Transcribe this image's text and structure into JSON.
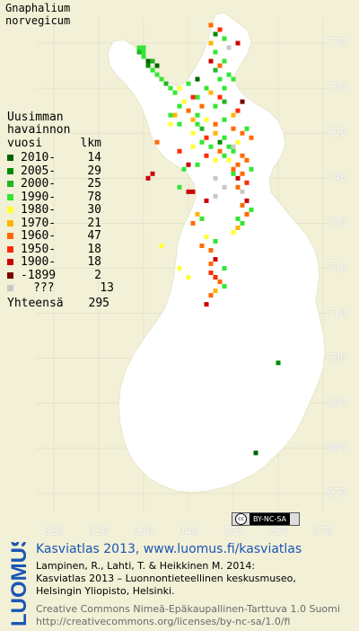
{
  "title": {
    "line1": "Gnaphalium",
    "line2": "norvegicum"
  },
  "legend": {
    "heading1": "Uusimman",
    "heading2": "havainnon",
    "col_period": "vuosi",
    "col_count": "lkm",
    "rows": [
      {
        "period": "2010-",
        "count": "14",
        "color": "#006400"
      },
      {
        "period": "2005-",
        "count": "29",
        "color": "#008c00"
      },
      {
        "period": "2000-",
        "count": "25",
        "color": "#22b422"
      },
      {
        "period": "1990-",
        "count": "78",
        "color": "#33e633"
      },
      {
        "period": "1980-",
        "count": "30",
        "color": "#ffff33"
      },
      {
        "period": "1970-",
        "count": "21",
        "color": "#ffb400"
      },
      {
        "period": "1960-",
        "count": "47",
        "color": "#ff6a00"
      },
      {
        "period": "1950-",
        "count": "18",
        "color": "#ff2a00"
      },
      {
        "period": "1900-",
        "count": "18",
        "color": "#cc0000"
      },
      {
        "period": "-1899",
        "count": "2",
        "color": "#7a0000"
      },
      {
        "period": "???",
        "count": "13",
        "color": "#c8c8c8"
      }
    ],
    "total_label": "Yhteensä",
    "total_count": "295"
  },
  "axes": {
    "y_ticks": [
      "770",
      "760",
      "750",
      "740",
      "730",
      "720",
      "710",
      "700",
      "690",
      "680",
      "670"
    ],
    "x_ticks": [
      "310",
      "320",
      "330",
      "340",
      "350",
      "360",
      "370"
    ]
  },
  "license_badge": "BY-NC-SA",
  "logo_text": "LUOMUS",
  "atlas_line": "Kasviatlas 2013, www.luomus.fi/kasviatlas",
  "reference": {
    "line1": "Lampinen, R., Lahti, T. & Heikkinen M. 2014:",
    "line2": "Kasviatlas 2013 – Luonnontieteellinen keskusmuseo,",
    "line3": "Helsingin Yliopisto, Helsinki."
  },
  "license": {
    "line1": "Creative Commons Nimeä-Epäkaupallinen-Tarttuva 1.0 Suomi",
    "line2": "http://creativecommons.org/licenses/by-nc-sa/1.0/fi"
  },
  "colors": {
    "background": "#f2f0d6",
    "land": "#ffffff",
    "grid": "#d8d6bf",
    "accent": "#1a56b5"
  },
  "observations": [
    {
      "n": 7690,
      "e": 3290,
      "c": 3
    },
    {
      "n": 7690,
      "e": 3300,
      "c": 3
    },
    {
      "n": 7680,
      "e": 3290,
      "c": 2
    },
    {
      "n": 7680,
      "e": 3300,
      "c": 3
    },
    {
      "n": 7670,
      "e": 3300,
      "c": 3
    },
    {
      "n": 7660,
      "e": 3310,
      "c": 0
    },
    {
      "n": 7650,
      "e": 3310,
      "c": 1
    },
    {
      "n": 7660,
      "e": 3320,
      "c": 2
    },
    {
      "n": 7640,
      "e": 3320,
      "c": 3
    },
    {
      "n": 7650,
      "e": 3330,
      "c": 0
    },
    {
      "n": 7630,
      "e": 3330,
      "c": 3
    },
    {
      "n": 7620,
      "e": 3340,
      "c": 3
    },
    {
      "n": 7610,
      "e": 3350,
      "c": 2
    },
    {
      "n": 7600,
      "e": 3360,
      "c": 3
    },
    {
      "n": 7590,
      "e": 3370,
      "c": 3
    },
    {
      "n": 7600,
      "e": 3380,
      "c": 4
    },
    {
      "n": 7610,
      "e": 3400,
      "c": 3
    },
    {
      "n": 7620,
      "e": 3420,
      "c": 0
    },
    {
      "n": 7580,
      "e": 3410,
      "c": 7
    },
    {
      "n": 7570,
      "e": 3390,
      "c": 4
    },
    {
      "n": 7550,
      "e": 3400,
      "c": 6
    },
    {
      "n": 7540,
      "e": 3420,
      "c": 3
    },
    {
      "n": 7530,
      "e": 3440,
      "c": 4
    },
    {
      "n": 7520,
      "e": 3460,
      "c": 6
    },
    {
      "n": 7530,
      "e": 3480,
      "c": 3
    },
    {
      "n": 7540,
      "e": 3500,
      "c": 5
    },
    {
      "n": 7510,
      "e": 3500,
      "c": 6
    },
    {
      "n": 7500,
      "e": 3520,
      "c": 6
    },
    {
      "n": 7510,
      "e": 3530,
      "c": 3
    },
    {
      "n": 7490,
      "e": 3540,
      "c": 6
    },
    {
      "n": 7480,
      "e": 3510,
      "c": 4
    },
    {
      "n": 7470,
      "e": 3490,
      "c": 3
    },
    {
      "n": 7460,
      "e": 3470,
      "c": 6
    },
    {
      "n": 7450,
      "e": 3440,
      "c": 7
    },
    {
      "n": 7440,
      "e": 3460,
      "c": 4
    },
    {
      "n": 7560,
      "e": 3460,
      "c": 3
    },
    {
      "n": 7570,
      "e": 3480,
      "c": 2
    },
    {
      "n": 7580,
      "e": 3470,
      "c": 7
    },
    {
      "n": 7590,
      "e": 3450,
      "c": 5
    },
    {
      "n": 7600,
      "e": 3440,
      "c": 3
    },
    {
      "n": 7620,
      "e": 3470,
      "c": 3
    },
    {
      "n": 7640,
      "e": 3460,
      "c": 2
    },
    {
      "n": 7660,
      "e": 3450,
      "c": 8
    },
    {
      "n": 7680,
      "e": 3460,
      "c": 3
    },
    {
      "n": 7700,
      "e": 3450,
      "c": 5
    },
    {
      "n": 7720,
      "e": 3460,
      "c": 1
    },
    {
      "n": 7710,
      "e": 3480,
      "c": 3
    },
    {
      "n": 7730,
      "e": 3470,
      "c": 7
    },
    {
      "n": 7740,
      "e": 3450,
      "c": 6
    },
    {
      "n": 7700,
      "e": 3510,
      "c": 8
    },
    {
      "n": 7690,
      "e": 3490,
      "c": 10
    },
    {
      "n": 7660,
      "e": 3480,
      "c": 3
    },
    {
      "n": 7650,
      "e": 3470,
      "c": 6
    },
    {
      "n": 7630,
      "e": 3490,
      "c": 3
    },
    {
      "n": 7600,
      "e": 3480,
      "c": 3
    },
    {
      "n": 7480,
      "e": 3430,
      "c": 3
    },
    {
      "n": 7470,
      "e": 3410,
      "c": 4
    },
    {
      "n": 7430,
      "e": 3400,
      "c": 8
    },
    {
      "n": 7420,
      "e": 3390,
      "c": 3
    },
    {
      "n": 7460,
      "e": 3380,
      "c": 7
    },
    {
      "n": 7500,
      "e": 3460,
      "c": 5
    },
    {
      "n": 7490,
      "e": 3480,
      "c": 3
    },
    {
      "n": 7470,
      "e": 3500,
      "c": 10
    },
    {
      "n": 7450,
      "e": 3520,
      "c": 6
    },
    {
      "n": 7440,
      "e": 3530,
      "c": 6
    },
    {
      "n": 7420,
      "e": 3540,
      "c": 3
    },
    {
      "n": 7410,
      "e": 3520,
      "c": 6
    },
    {
      "n": 7390,
      "e": 3530,
      "c": 7
    },
    {
      "n": 7380,
      "e": 3510,
      "c": 6
    },
    {
      "n": 7370,
      "e": 3520,
      "c": 10
    },
    {
      "n": 7350,
      "e": 3530,
      "c": 8
    },
    {
      "n": 7330,
      "e": 3540,
      "c": 3
    },
    {
      "n": 7320,
      "e": 3530,
      "c": 6
    },
    {
      "n": 7300,
      "e": 3520,
      "c": 3
    },
    {
      "n": 7290,
      "e": 3510,
      "c": 5
    },
    {
      "n": 7280,
      "e": 3500,
      "c": 4
    },
    {
      "n": 7260,
      "e": 3460,
      "c": 3
    },
    {
      "n": 7270,
      "e": 3440,
      "c": 4
    },
    {
      "n": 7250,
      "e": 3430,
      "c": 6
    },
    {
      "n": 7240,
      "e": 3450,
      "c": 6
    },
    {
      "n": 7220,
      "e": 3460,
      "c": 8
    },
    {
      "n": 7210,
      "e": 3450,
      "c": 6
    },
    {
      "n": 7190,
      "e": 3450,
      "c": 7
    },
    {
      "n": 7180,
      "e": 3460,
      "c": 7
    },
    {
      "n": 7170,
      "e": 3470,
      "c": 6
    },
    {
      "n": 7160,
      "e": 3480,
      "c": 3
    },
    {
      "n": 7150,
      "e": 3460,
      "c": 5
    },
    {
      "n": 7140,
      "e": 3450,
      "c": 6
    },
    {
      "n": 7120,
      "e": 3440,
      "c": 8
    },
    {
      "n": 7200,
      "e": 3480,
      "c": 3
    },
    {
      "n": 7350,
      "e": 3440,
      "c": 8
    },
    {
      "n": 7320,
      "e": 3420,
      "c": 5
    },
    {
      "n": 7300,
      "e": 3410,
      "c": 6
    },
    {
      "n": 7370,
      "e": 3400,
      "c": 8
    },
    {
      "n": 7370,
      "e": 3410,
      "c": 8
    },
    {
      "n": 7380,
      "e": 3380,
      "c": 3
    },
    {
      "n": 7250,
      "e": 3340,
      "c": 4
    },
    {
      "n": 7200,
      "e": 3380,
      "c": 4
    },
    {
      "n": 7180,
      "e": 3400,
      "c": 4
    },
    {
      "n": 7400,
      "e": 3310,
      "c": 8
    },
    {
      "n": 7410,
      "e": 3320,
      "c": 8
    },
    {
      "n": 7360,
      "e": 3460,
      "c": 10
    },
    {
      "n": 7380,
      "e": 3480,
      "c": 10
    },
    {
      "n": 7400,
      "e": 3460,
      "c": 10
    },
    {
      "n": 7310,
      "e": 3430,
      "c": 3
    },
    {
      "n": 7560,
      "e": 3430,
      "c": 6
    },
    {
      "n": 7580,
      "e": 3420,
      "c": 3
    },
    {
      "n": 7510,
      "e": 3430,
      "c": 2
    },
    {
      "n": 7520,
      "e": 3420,
      "c": 3
    },
    {
      "n": 7530,
      "e": 3410,
      "c": 5
    },
    {
      "n": 7500,
      "e": 3410,
      "c": 4
    },
    {
      "n": 7490,
      "e": 3440,
      "c": 7
    },
    {
      "n": 7480,
      "e": 3470,
      "c": 1
    },
    {
      "n": 7460,
      "e": 3500,
      "c": 3
    },
    {
      "n": 7440,
      "e": 3490,
      "c": 4
    },
    {
      "n": 7430,
      "e": 3510,
      "c": 6
    },
    {
      "n": 7410,
      "e": 3500,
      "c": 3
    },
    {
      "n": 7430,
      "e": 3420,
      "c": 3
    },
    {
      "n": 7520,
      "e": 3380,
      "c": 3
    },
    {
      "n": 7540,
      "e": 3370,
      "c": 5
    },
    {
      "n": 6990,
      "e": 3600,
      "c": 1
    },
    {
      "n": 6790,
      "e": 3550,
      "c": 0
    },
    {
      "n": 7480,
      "e": 3330,
      "c": 6
    },
    {
      "n": 7570,
      "e": 3520,
      "c": 9
    },
    {
      "n": 7620,
      "e": 3500,
      "c": 3
    },
    {
      "n": 7550,
      "e": 3510,
      "c": 7
    },
    {
      "n": 7520,
      "e": 3360,
      "c": 4
    },
    {
      "n": 7540,
      "e": 3360,
      "c": 3
    },
    {
      "n": 7560,
      "e": 3380,
      "c": 3
    },
    {
      "n": 7470,
      "e": 3450,
      "c": 3
    },
    {
      "n": 7450,
      "e": 3480,
      "c": 3
    },
    {
      "n": 7420,
      "e": 3500,
      "c": 6
    },
    {
      "n": 7400,
      "e": 3510,
      "c": 8
    },
    {
      "n": 7340,
      "e": 3520,
      "c": 6
    },
    {
      "n": 7310,
      "e": 3510,
      "c": 3
    }
  ]
}
